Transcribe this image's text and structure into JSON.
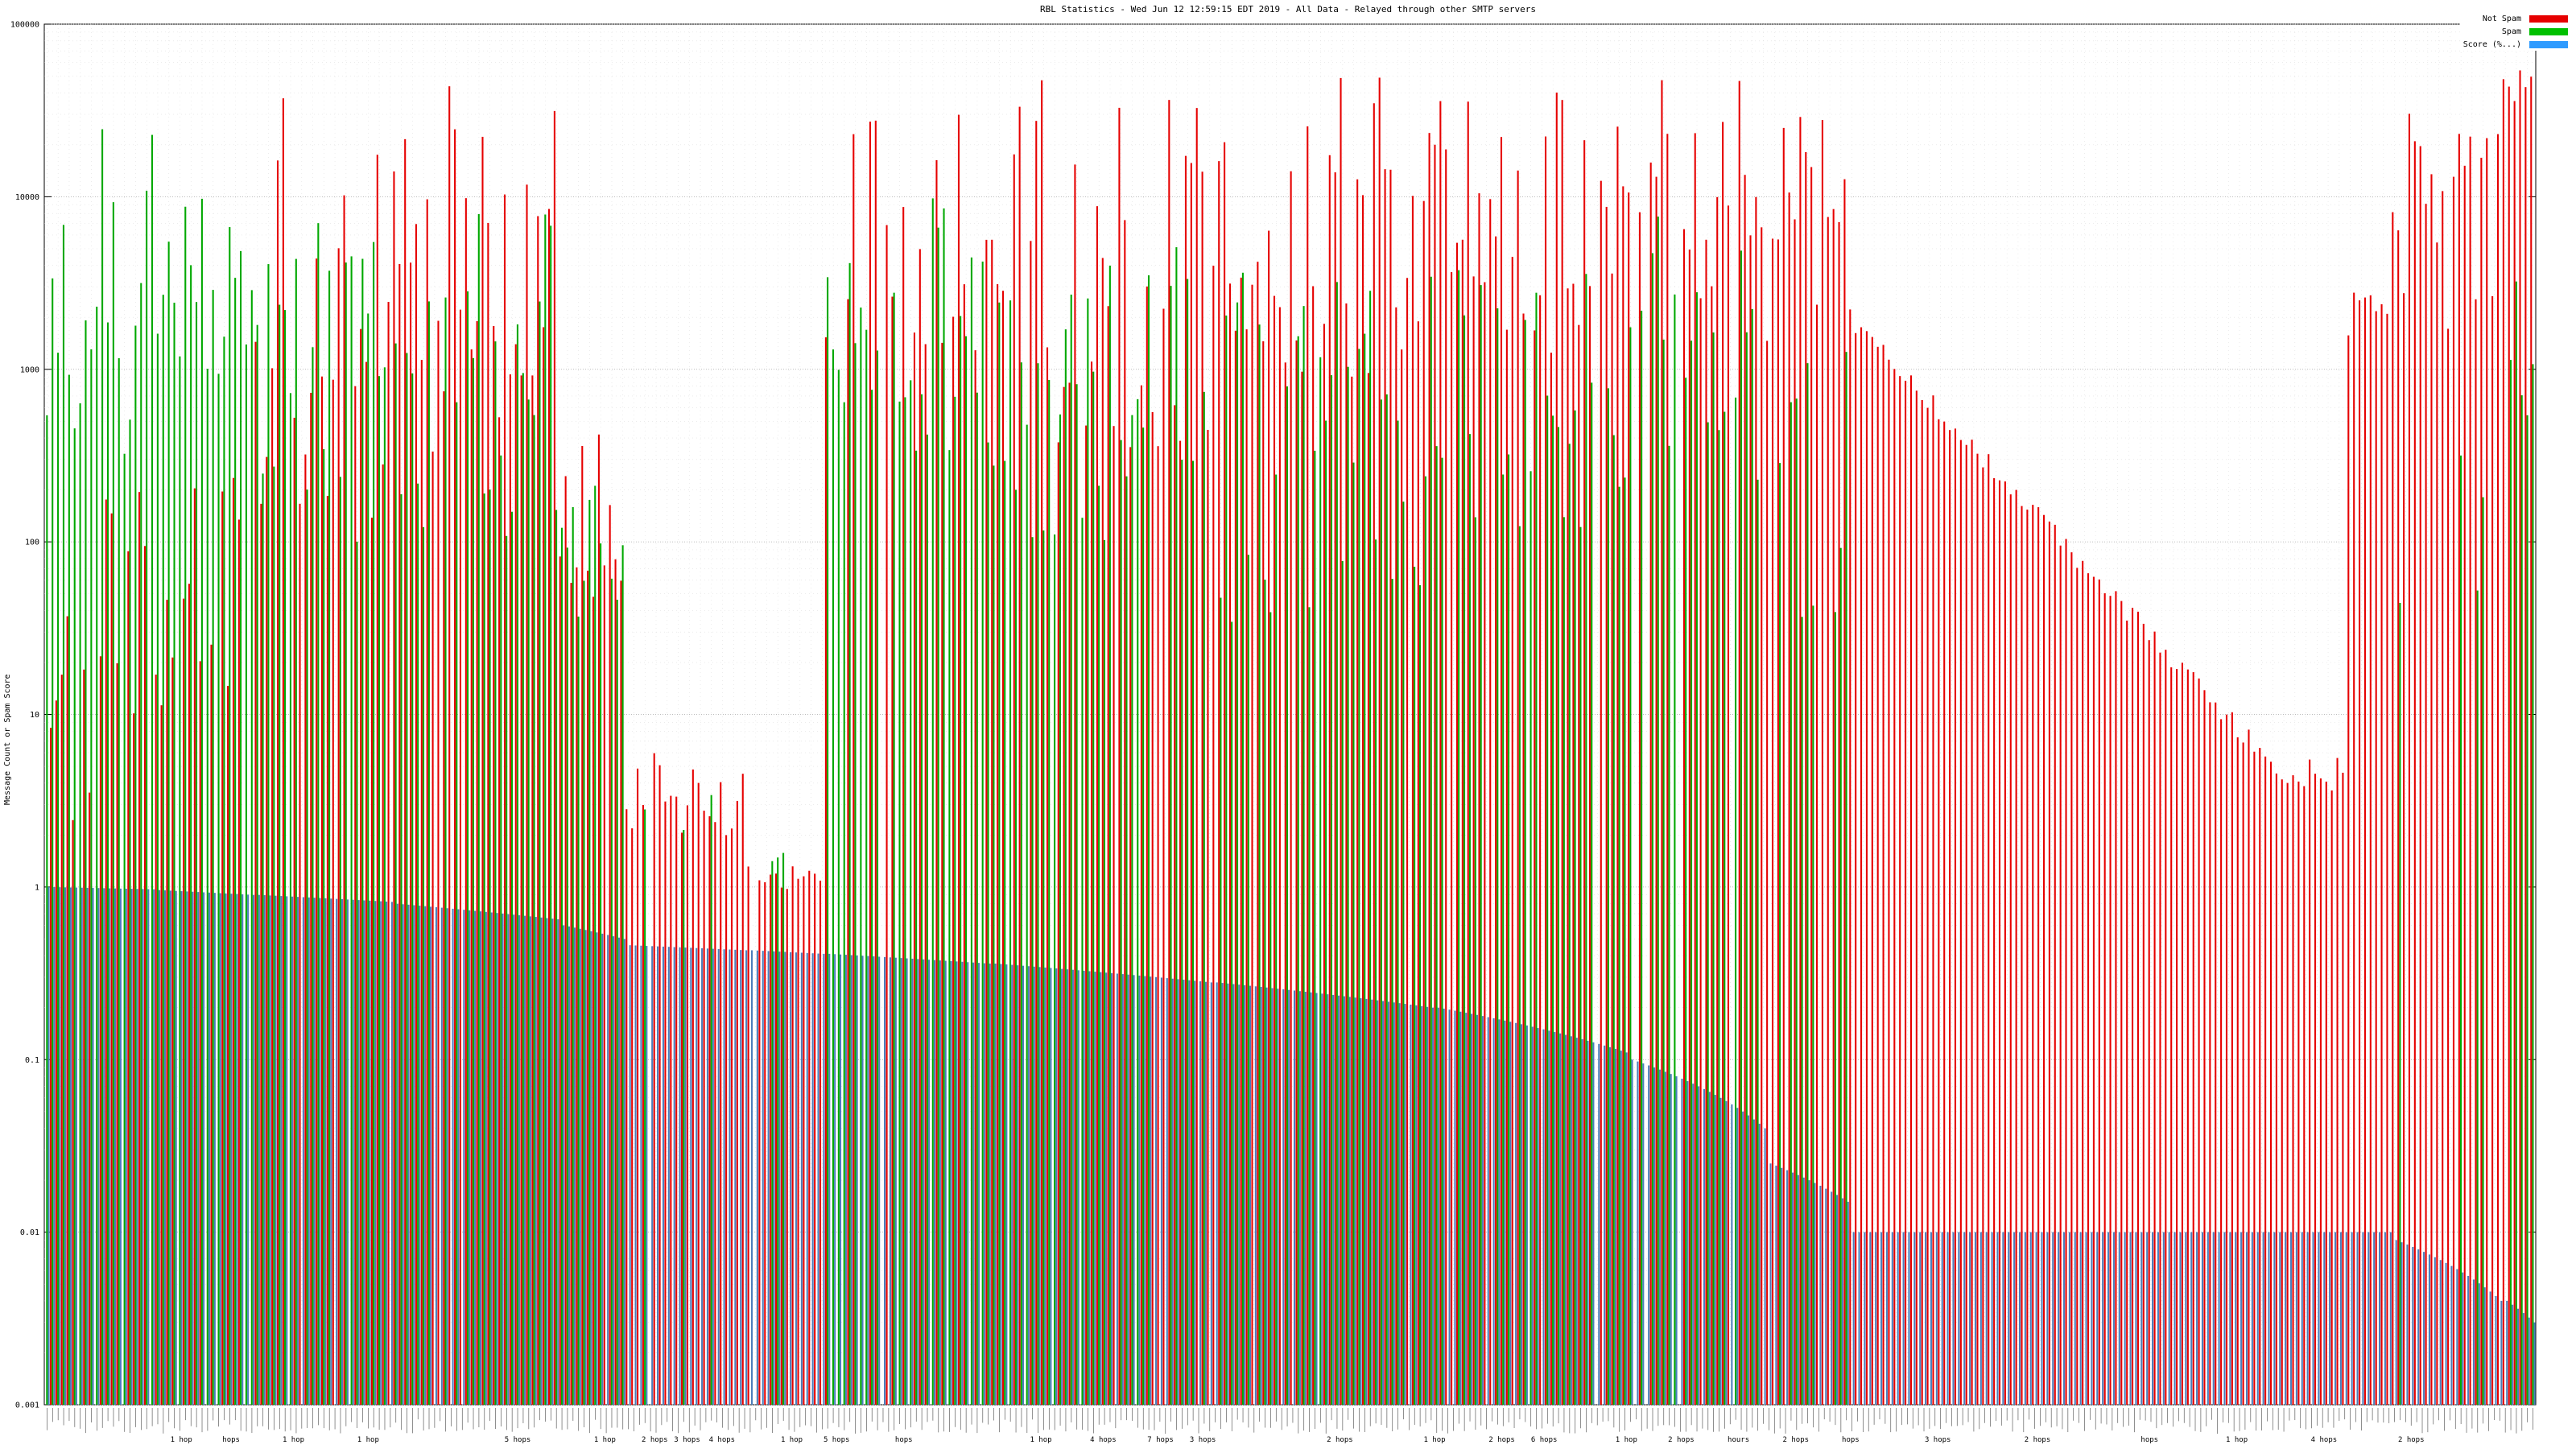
{
  "chart_data": {
    "type": "bar",
    "title": "RBL Statistics - Wed Jun 12 12:59:15 EDT 2019 - All Data - Relayed through other SMTP servers",
    "ylabel": "Message Count or Spam Score",
    "yscale": "log",
    "ylim": [
      0.001,
      100000
    ],
    "ytick_labels": [
      "100000",
      "10000",
      "1000",
      "100",
      "10",
      "1",
      "0.1",
      "0.01",
      "0.001"
    ],
    "grid": true,
    "legend_position": "top-right",
    "legend": [
      {
        "label": "Not Spam",
        "color": "#e60000"
      },
      {
        "label": "Spam",
        "color": "#00c000"
      },
      {
        "label": "Score (%...)",
        "color": "#2e9bff"
      }
    ],
    "colors": {
      "not_spam_bar": "#e60000",
      "spam_bar": "#00a800",
      "score_bar": "#4a7ebb",
      "grid_major": "#a8a8a8",
      "grid_minor": "#d4d4d4",
      "border": "#000000",
      "label_strip": "#444444"
    },
    "series_names": [
      "Not Spam",
      "Spam",
      "Score"
    ],
    "bars": {
      "note": "values estimated from pixels; red/green given as log10 ranges, blue (score) as linear values",
      "seed": 1337,
      "total_slots": 450,
      "segments": [
        {
          "count": 20,
          "red": {
            "p": 0.75,
            "lo": 0.3,
            "hi": 2.3
          },
          "green": {
            "p": 1,
            "lo": 2.4,
            "hi": 4.5
          },
          "blue": {
            "start": 1.0,
            "end": 0.97
          }
        },
        {
          "count": 18,
          "red": {
            "p": 0.85,
            "lo": 1.0,
            "hi": 3.0
          },
          "green": {
            "p": 1,
            "lo": 2.8,
            "hi": 4.0
          },
          "blue": {
            "start": 0.96,
            "end": 0.9
          }
        },
        {
          "count": 25,
          "red": {
            "p": 0.95,
            "lo": 2.0,
            "hi": 4.7
          },
          "green": {
            "p": 0.9,
            "lo": 2.0,
            "hi": 3.9
          },
          "blue": {
            "start": 0.9,
            "end": 0.82
          }
        },
        {
          "count": 30,
          "red": {
            "p": 0.95,
            "lo": 2.5,
            "hi": 4.65
          },
          "green": {
            "p": 0.85,
            "lo": 2.0,
            "hi": 3.9
          },
          "blue": {
            "start": 0.8,
            "end": 0.65
          }
        },
        {
          "count": 12,
          "red": {
            "p": 0.9,
            "lo": 1.5,
            "hi": 2.7
          },
          "green": {
            "p": 0.7,
            "lo": 1.5,
            "hi": 2.5
          },
          "blue": {
            "start": 0.6,
            "end": 0.5
          }
        },
        {
          "count": 22,
          "red": {
            "p": 0.95,
            "lo": 0.3,
            "hi": 0.78
          },
          "green": {
            "p": 0.15,
            "lo": 0.2,
            "hi": 0.6
          },
          "blue": {
            "start": 0.46,
            "end": 0.43
          }
        },
        {
          "count": 14,
          "red": {
            "p": 0.9,
            "lo": -0.02,
            "hi": 0.12
          },
          "green": {
            "p": 0.2,
            "lo": 0.0,
            "hi": 0.3
          },
          "blue": {
            "start": 0.43,
            "end": 0.41
          }
        },
        {
          "count": 30,
          "red": {
            "p": 0.6,
            "lo": 3.0,
            "hi": 4.65
          },
          "green": {
            "p": 0.95,
            "lo": 2.5,
            "hi": 4.0
          },
          "blue": {
            "start": 0.41,
            "end": 0.36
          }
        },
        {
          "count": 40,
          "red": {
            "p": 0.9,
            "lo": 2.5,
            "hi": 4.7
          },
          "green": {
            "p": 0.9,
            "lo": 2.0,
            "hi": 3.8
          },
          "blue": {
            "start": 0.36,
            "end": 0.28
          }
        },
        {
          "count": 40,
          "red": {
            "p": 0.95,
            "lo": 2.8,
            "hi": 4.7
          },
          "green": {
            "p": 0.85,
            "lo": 1.5,
            "hi": 3.6
          },
          "blue": {
            "start": 0.28,
            "end": 0.2
          }
        },
        {
          "count": 35,
          "red": {
            "p": 0.95,
            "lo": 3.0,
            "hi": 4.75
          },
          "green": {
            "p": 0.8,
            "lo": 2.0,
            "hi": 3.7
          },
          "blue": {
            "start": 0.2,
            "end": 0.11
          }
        },
        {
          "count": 25,
          "red": {
            "p": 0.9,
            "lo": 3.3,
            "hi": 4.7
          },
          "green": {
            "p": 0.8,
            "lo": 2.3,
            "hi": 3.9
          },
          "blue": {
            "start": 0.1,
            "end": 0.04
          }
        },
        {
          "count": 15,
          "red": {
            "p": 0.95,
            "lo": 2.9,
            "hi": 4.6
          },
          "green": {
            "p": 0.6,
            "lo": 1.5,
            "hi": 3.2
          },
          "blue": {
            "start": 0.025,
            "end": 0.015
          }
        },
        {
          "count": 80,
          "red": {
            "p": 1,
            "mode": "ramp",
            "lo": 3.3,
            "hi": 0.62,
            "noise": 0.12
          },
          "green": {
            "p": 0,
            "lo": 0,
            "hi": 0
          },
          "blue": {
            "start": 0.01,
            "end": 0.01
          }
        },
        {
          "count": 10,
          "red": {
            "p": 1,
            "lo": 0.55,
            "hi": 0.75
          },
          "green": {
            "p": 0,
            "lo": 0,
            "hi": 0
          },
          "blue": {
            "start": 0.01,
            "end": 0.01
          }
        },
        {
          "count": 8,
          "red": {
            "p": 1,
            "lo": 3.15,
            "hi": 3.45
          },
          "green": {
            "p": 0.3,
            "lo": 1.0,
            "hi": 2.6
          },
          "blue": {
            "start": 0.01,
            "end": 0.01
          }
        },
        {
          "count": 20,
          "red": {
            "p": 1,
            "lo": 3.1,
            "hi": 4.5
          },
          "green": {
            "p": 0.25,
            "lo": 1.5,
            "hi": 2.9
          },
          "blue": {
            "start": 0.009,
            "end": 0.004
          }
        },
        {
          "count": 6,
          "red": {
            "p": 1,
            "lo": 4.4,
            "hi": 4.75
          },
          "green": {
            "p": 0.5,
            "lo": 2.5,
            "hi": 3.6
          },
          "blue": {
            "start": 0.004,
            "end": 0.003
          }
        }
      ]
    },
    "x_sublabels": [
      {
        "pos": 0.055,
        "text": "1 hop"
      },
      {
        "pos": 0.075,
        "text": "hops"
      },
      {
        "pos": 0.1,
        "text": "1 hop"
      },
      {
        "pos": 0.13,
        "text": "1 hop"
      },
      {
        "pos": 0.19,
        "text": "5 hops"
      },
      {
        "pos": 0.225,
        "text": "1 hop"
      },
      {
        "pos": 0.245,
        "text": "2 hops"
      },
      {
        "pos": 0.258,
        "text": "3 hops"
      },
      {
        "pos": 0.272,
        "text": "4 hops"
      },
      {
        "pos": 0.3,
        "text": "1 hop"
      },
      {
        "pos": 0.318,
        "text": "5 hops"
      },
      {
        "pos": 0.345,
        "text": "hops"
      },
      {
        "pos": 0.4,
        "text": "1 hop"
      },
      {
        "pos": 0.425,
        "text": "4 hops"
      },
      {
        "pos": 0.448,
        "text": "7 hops"
      },
      {
        "pos": 0.465,
        "text": "3 hops"
      },
      {
        "pos": 0.52,
        "text": "2 hops"
      },
      {
        "pos": 0.558,
        "text": "1 hop"
      },
      {
        "pos": 0.585,
        "text": "2 hops"
      },
      {
        "pos": 0.602,
        "text": "6 hops"
      },
      {
        "pos": 0.635,
        "text": "1 hop"
      },
      {
        "pos": 0.657,
        "text": "2 hops"
      },
      {
        "pos": 0.68,
        "text": "hours"
      },
      {
        "pos": 0.703,
        "text": "2 hops"
      },
      {
        "pos": 0.725,
        "text": "hops"
      },
      {
        "pos": 0.76,
        "text": "3 hops"
      },
      {
        "pos": 0.8,
        "text": "2 hops"
      },
      {
        "pos": 0.845,
        "text": "hops"
      },
      {
        "pos": 0.88,
        "text": "1 hop"
      },
      {
        "pos": 0.915,
        "text": "4 hops"
      },
      {
        "pos": 0.95,
        "text": "2 hops"
      }
    ]
  }
}
